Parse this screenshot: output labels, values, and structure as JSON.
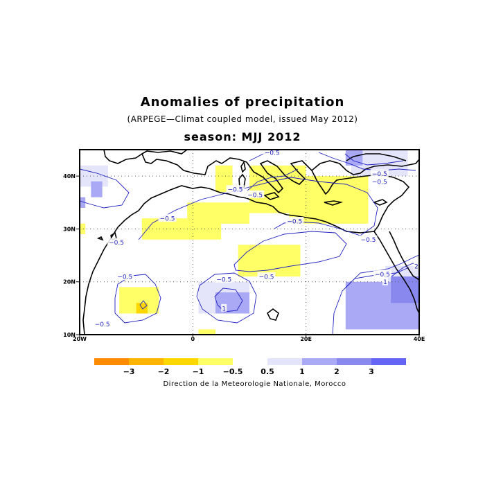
{
  "title": "Anomalies of precipitation",
  "subtitle": "(ARPEGE—Climat coupled model, issued May 2012)",
  "season_label": "season: MJJ 2012",
  "credit": "Direction de la Meteorologie Nationale, Morocco",
  "colors": {
    "frame": "#000000",
    "grid": "#555555",
    "coast": "#000000",
    "contour": "#2020c0",
    "dry_1": "#ffff66",
    "dry_2": "#ffd700",
    "dry_3": "#ffb400",
    "dry_4": "#ff8c00",
    "wet_1": "#e4e4fa",
    "wet_2": "#a9a9f5",
    "wet_3": "#8888ee",
    "wet_4": "#6464f5"
  },
  "chart_data": {
    "type": "map",
    "projection": "lat-lon",
    "lon_range": [
      -20,
      40
    ],
    "lat_range": [
      10,
      45
    ],
    "x_ticks": [
      {
        "value": -20,
        "label": "20W"
      },
      {
        "value": 0,
        "label": "0"
      },
      {
        "value": 20,
        "label": "20E"
      },
      {
        "value": 40,
        "label": "40E"
      }
    ],
    "y_ticks": [
      {
        "value": 10,
        "label": "10N"
      },
      {
        "value": 20,
        "label": "20N"
      },
      {
        "value": 30,
        "label": "30N"
      },
      {
        "value": 40,
        "label": "40N"
      }
    ],
    "grid": true,
    "legend": {
      "placement": "bottom",
      "colors": [
        "#ff8c00",
        "#ffb400",
        "#ffd700",
        "#ffff66",
        "#ffffff",
        "#e4e4fa",
        "#a9a9f5",
        "#8888ee",
        "#6464f5"
      ],
      "labels": [
        "−3",
        "−2",
        "−1",
        "−0.5",
        "0.5",
        "1",
        "2",
        "3"
      ]
    },
    "shaded_cells": [
      {
        "level": "wet_1",
        "lon": [
          -20,
          -15
        ],
        "lat": [
          38,
          42
        ]
      },
      {
        "level": "wet_2",
        "lon": [
          -18,
          -16
        ],
        "lat": [
          36,
          39
        ]
      },
      {
        "level": "wet_2",
        "lon": [
          -20,
          -19
        ],
        "lat": [
          34,
          36
        ]
      },
      {
        "level": "dry_1",
        "lon": [
          -20,
          -19
        ],
        "lat": [
          29,
          31
        ]
      },
      {
        "level": "dry_1",
        "lon": [
          4,
          7
        ],
        "lat": [
          37,
          42
        ]
      },
      {
        "level": "dry_1",
        "lon": [
          -1,
          10
        ],
        "lat": [
          31,
          35
        ]
      },
      {
        "level": "dry_1",
        "lon": [
          -9,
          5
        ],
        "lat": [
          28,
          32
        ]
      },
      {
        "level": "dry_1",
        "lon": [
          10,
          20
        ],
        "lat": [
          33,
          42
        ]
      },
      {
        "level": "dry_1",
        "lon": [
          17,
          31
        ],
        "lat": [
          31,
          40
        ]
      },
      {
        "level": "dry_1",
        "lon": [
          8,
          19
        ],
        "lat": [
          21,
          27
        ]
      },
      {
        "level": "dry_1",
        "lon": [
          -13,
          -6
        ],
        "lat": [
          14,
          19
        ]
      },
      {
        "level": "dry_2",
        "lon": [
          -10,
          -8
        ],
        "lat": [
          14,
          16
        ]
      },
      {
        "level": "dry_1",
        "lon": [
          1,
          4
        ],
        "lat": [
          10,
          11
        ]
      },
      {
        "level": "wet_1",
        "lon": [
          1,
          10
        ],
        "lat": [
          14,
          20
        ]
      },
      {
        "level": "wet_2",
        "lon": [
          4,
          10
        ],
        "lat": [
          14,
          18
        ]
      },
      {
        "level": "wet_1",
        "lon": [
          28,
          38
        ],
        "lat": [
          40,
          45
        ]
      },
      {
        "level": "wet_2",
        "lon": [
          27,
          30
        ],
        "lat": [
          42,
          45
        ]
      },
      {
        "level": "wet_1",
        "lon": [
          34,
          40
        ],
        "lat": [
          19,
          23
        ]
      },
      {
        "level": "wet_2",
        "lon": [
          27,
          40
        ],
        "lat": [
          11,
          20
        ]
      },
      {
        "level": "wet_3",
        "lon": [
          35,
          40
        ],
        "lat": [
          16,
          21
        ]
      }
    ],
    "contour_labels": [
      {
        "text": "−0.5",
        "lon": -4.5,
        "lat": 32
      },
      {
        "text": "−0.5",
        "lon": 7.5,
        "lat": 37.5
      },
      {
        "text": "−0.5",
        "lon": 11,
        "lat": 36.5
      },
      {
        "text": "−0.5",
        "lon": 14,
        "lat": 44.5
      },
      {
        "text": "−0.5",
        "lon": -13.5,
        "lat": 27.5
      },
      {
        "text": "−0.5",
        "lon": 18,
        "lat": 31.5
      },
      {
        "text": "−0.5",
        "lon": 31,
        "lat": 28
      },
      {
        "text": "−0.5",
        "lon": 13,
        "lat": 21
      },
      {
        "text": "−0.5",
        "lon": 33,
        "lat": 40.5
      },
      {
        "text": "−0.5",
        "lon": 33,
        "lat": 39
      },
      {
        "text": "−0.5",
        "lon": 33.5,
        "lat": 21.5
      },
      {
        "text": "−0.5",
        "lon": -12,
        "lat": 21
      },
      {
        "text": "−0.5",
        "lon": -16,
        "lat": 12
      },
      {
        "text": "−0.5",
        "lon": 5.5,
        "lat": 20.5
      },
      {
        "text": "1",
        "lon": 5.5,
        "lat": 15
      },
      {
        "text": "1",
        "lon": 34,
        "lat": 20
      },
      {
        "text": "2",
        "lon": 39.5,
        "lat": 23
      }
    ]
  }
}
